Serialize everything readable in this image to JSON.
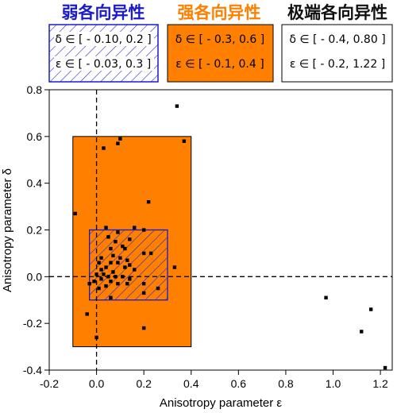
{
  "chart_data": {
    "type": "scatter",
    "title": "",
    "xlabel": "Anisotropy parameter  ε",
    "ylabel": "Anisotropy parameter  δ",
    "xlim": [
      -0.2,
      1.25
    ],
    "ylim": [
      -0.4,
      0.8
    ],
    "xticks": [
      "-0.2",
      "0.0",
      "0.2",
      "0.4",
      "0.6",
      "0.8",
      "1.0",
      "1.2"
    ],
    "yticks": [
      "-0.4",
      "-0.2",
      "0.0",
      "0.2",
      "0.4",
      "0.6",
      "0.8"
    ],
    "grid": false,
    "reference_lines": [
      {
        "axis": "x",
        "value": 0,
        "style": "dashed"
      },
      {
        "axis": "y",
        "value": 0,
        "style": "dashed"
      }
    ],
    "regions": [
      {
        "name": "弱各向异性",
        "color": "#1a1acc",
        "fill": "hatched",
        "line_delta": "δ ∈ [ - 0.10, 0.2 ]",
        "line_epsilon": "ε ∈ [ - 0.03, 0.3 ]",
        "delta_range": [
          -0.1,
          0.2
        ],
        "epsilon_range": [
          -0.03,
          0.3
        ]
      },
      {
        "name": "强各向异性",
        "color": "#ff7f00",
        "fill": "solid",
        "line_delta": "δ ∈ [ - 0.3, 0.6 ]",
        "line_epsilon": "ε ∈ [ - 0.1, 0.4 ]",
        "delta_range": [
          -0.3,
          0.6
        ],
        "epsilon_range": [
          -0.1,
          0.4
        ]
      },
      {
        "name": "极端各向异性",
        "color": "#111111",
        "fill": "none",
        "line_delta": "δ ∈ [ - 0.4, 0.80 ]",
        "line_epsilon": "ε ∈ [ - 0.2, 1.22 ]",
        "delta_range": [
          -0.4,
          0.8
        ],
        "epsilon_range": [
          -0.2,
          1.22
        ]
      }
    ],
    "points": [
      {
        "x": 0.34,
        "y": 0.73
      },
      {
        "x": 0.37,
        "y": 0.58
      },
      {
        "x": 0.1,
        "y": 0.59
      },
      {
        "x": 0.09,
        "y": 0.57
      },
      {
        "x": 0.03,
        "y": 0.55
      },
      {
        "x": -0.09,
        "y": 0.27
      },
      {
        "x": 0.22,
        "y": 0.32
      },
      {
        "x": 0.04,
        "y": 0.21
      },
      {
        "x": 0.16,
        "y": 0.21
      },
      {
        "x": 0.2,
        "y": 0.2
      },
      {
        "x": 0.09,
        "y": 0.19
      },
      {
        "x": 0.05,
        "y": 0.17
      },
      {
        "x": 0.14,
        "y": 0.16
      },
      {
        "x": 0.08,
        "y": 0.15
      },
      {
        "x": 0.11,
        "y": 0.13
      },
      {
        "x": 0.06,
        "y": 0.12
      },
      {
        "x": 0.12,
        "y": 0.12
      },
      {
        "x": 0.2,
        "y": 0.1
      },
      {
        "x": 0.23,
        "y": 0.1
      },
      {
        "x": 0.07,
        "y": 0.09
      },
      {
        "x": 0.02,
        "y": 0.08
      },
      {
        "x": 0.1,
        "y": 0.08
      },
      {
        "x": 0.13,
        "y": 0.07
      },
      {
        "x": 0.06,
        "y": 0.06
      },
      {
        "x": 0.09,
        "y": 0.06
      },
      {
        "x": 0.01,
        "y": 0.06
      },
      {
        "x": 0.14,
        "y": 0.05
      },
      {
        "x": 0.04,
        "y": 0.04
      },
      {
        "x": 0.12,
        "y": 0.04
      },
      {
        "x": 0.33,
        "y": 0.04
      },
      {
        "x": 0.02,
        "y": 0.03
      },
      {
        "x": 0.16,
        "y": 0.03
      },
      {
        "x": 0.07,
        "y": 0.02
      },
      {
        "x": 0.0,
        "y": 0.01
      },
      {
        "x": 0.03,
        "y": 0.01
      },
      {
        "x": 0.05,
        "y": 0.0
      },
      {
        "x": 0.08,
        "y": 0.0
      },
      {
        "x": 0.11,
        "y": 0.0
      },
      {
        "x": 0.14,
        "y": -0.01
      },
      {
        "x": 0.02,
        "y": -0.01
      },
      {
        "x": 0.06,
        "y": -0.02
      },
      {
        "x": -0.01,
        "y": -0.02
      },
      {
        "x": 0.09,
        "y": -0.03
      },
      {
        "x": 0.04,
        "y": -0.04
      },
      {
        "x": 0.13,
        "y": -0.03
      },
      {
        "x": -0.03,
        "y": -0.03
      },
      {
        "x": 0.2,
        "y": -0.03
      },
      {
        "x": 0.01,
        "y": -0.05
      },
      {
        "x": 0.26,
        "y": -0.05
      },
      {
        "x": 0.2,
        "y": -0.07
      },
      {
        "x": 0.06,
        "y": -0.09
      },
      {
        "x": -0.04,
        "y": -0.16
      },
      {
        "x": 0.2,
        "y": -0.22
      },
      {
        "x": 0.0,
        "y": -0.26
      },
      {
        "x": 0.97,
        "y": -0.09
      },
      {
        "x": 1.16,
        "y": -0.14
      },
      {
        "x": 1.12,
        "y": -0.235
      },
      {
        "x": 1.22,
        "y": -0.39
      }
    ]
  }
}
